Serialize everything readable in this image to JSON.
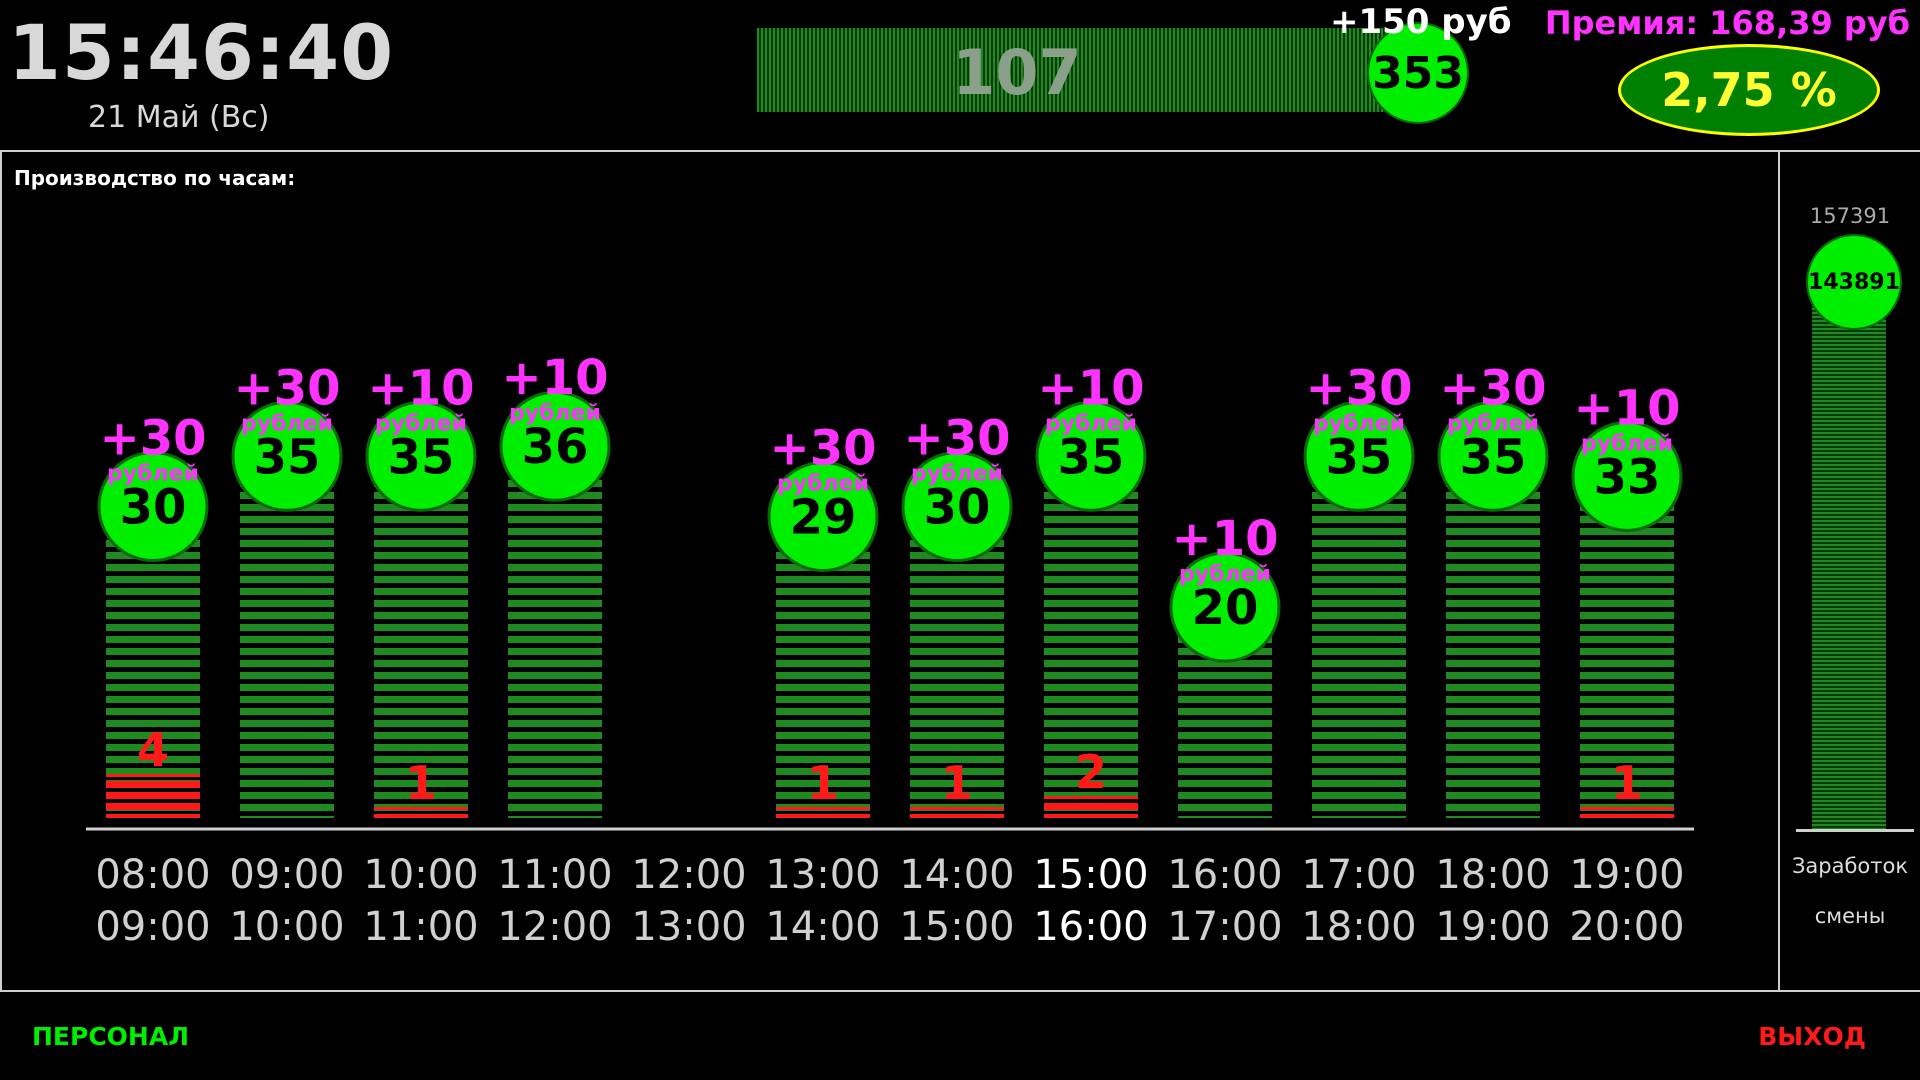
{
  "header": {
    "time": "15:46:40",
    "date": "21 Май (Вс)",
    "bar_value": "107",
    "circle_value": "353",
    "bonus": "+150 руб",
    "premium": "Премия: 168,39 руб",
    "percent": "2,75 %"
  },
  "chart_data": {
    "type": "bar",
    "title": "Производство по часам:",
    "categories_from": [
      "08:00",
      "09:00",
      "10:00",
      "11:00",
      "12:00",
      "13:00",
      "14:00",
      "15:00",
      "16:00",
      "17:00",
      "18:00",
      "19:00"
    ],
    "categories_to": [
      "09:00",
      "10:00",
      "11:00",
      "12:00",
      "13:00",
      "14:00",
      "15:00",
      "16:00",
      "17:00",
      "18:00",
      "19:00",
      "20:00"
    ],
    "values": [
      30,
      35,
      35,
      36,
      null,
      29,
      30,
      35,
      20,
      35,
      35,
      33
    ],
    "bonuses": [
      "+30",
      "+30",
      "+10",
      "+10",
      null,
      "+30",
      "+30",
      "+10",
      "+10",
      "+30",
      "+30",
      "+10"
    ],
    "bonus_unit": "рублей",
    "defects": [
      4,
      null,
      1,
      null,
      null,
      1,
      1,
      2,
      null,
      null,
      null,
      1
    ],
    "ylim": [
      0,
      40
    ],
    "current_index": 7
  },
  "sidebar": {
    "total": "157391",
    "earned": "143891",
    "label_line1": "Заработок",
    "label_line2": "смены"
  },
  "footer": {
    "staff": "ПЕРСОНАЛ",
    "exit": "ВЫХОД"
  },
  "colors": {
    "bar": "#1f8a1f",
    "circle": "#00ee00",
    "bonus": "#ff33ff",
    "defect": "#ff1a1a"
  }
}
